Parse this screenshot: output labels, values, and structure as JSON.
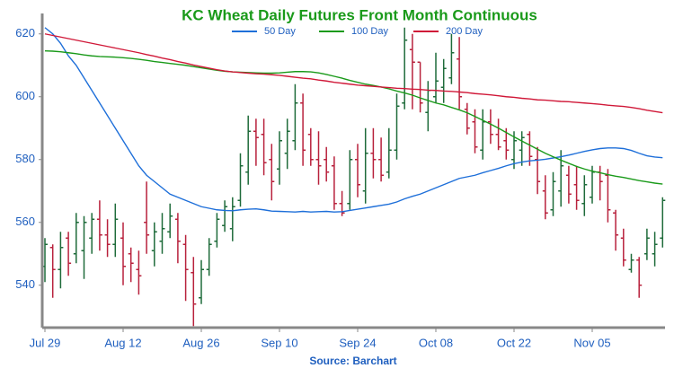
{
  "chart_data": {
    "type": "ohlc",
    "title": "KC Wheat Daily Futures Front Month Continuous",
    "title_color": "#1a9a1a",
    "source": "Source: Barchart",
    "categories": [
      "Jul 29",
      null,
      null,
      null,
      null,
      null,
      null,
      null,
      null,
      null,
      "Aug 12",
      null,
      null,
      null,
      null,
      null,
      null,
      null,
      null,
      null,
      "Aug 26",
      null,
      null,
      null,
      null,
      null,
      null,
      null,
      null,
      null,
      "Sep 10",
      null,
      null,
      null,
      null,
      null,
      null,
      null,
      null,
      null,
      "Sep 24",
      null,
      null,
      null,
      null,
      null,
      null,
      null,
      null,
      null,
      "Oct 08",
      null,
      null,
      null,
      null,
      null,
      null,
      null,
      null,
      null,
      "Oct 22",
      null,
      null,
      null,
      null,
      null,
      null,
      null,
      null,
      null,
      "Nov 05",
      null,
      null,
      null,
      null,
      null,
      null,
      null,
      null,
      null
    ],
    "open": [
      546,
      552,
      545,
      555,
      550,
      551,
      555,
      561,
      556,
      553,
      555,
      550,
      545,
      560,
      551,
      554,
      557,
      561,
      553,
      544,
      536,
      545,
      554,
      559,
      558,
      567,
      576,
      589,
      588,
      580,
      577,
      582,
      586,
      598,
      588,
      580,
      580,
      578,
      566,
      566,
      580,
      570,
      582,
      580,
      576,
      583,
      598,
      615,
      611,
      595,
      600,
      603,
      606,
      612,
      596,
      592,
      583,
      592,
      588,
      586,
      580,
      583,
      588,
      580,
      570,
      564,
      570,
      575,
      572,
      566,
      568,
      576,
      575,
      563,
      555,
      545,
      548,
      550,
      550,
      555
    ],
    "high": [
      555,
      553,
      557,
      557,
      563,
      562,
      563,
      567,
      561,
      566,
      560,
      552,
      551,
      573,
      560,
      563,
      566,
      563,
      556,
      549,
      548,
      555,
      563,
      567,
      568,
      582,
      594,
      593,
      593,
      585,
      589,
      593,
      604,
      601,
      590,
      589,
      584,
      581,
      570,
      583,
      585,
      590,
      590,
      587,
      590,
      601,
      622,
      620,
      611,
      605,
      614,
      612,
      620,
      619,
      598,
      596,
      596,
      596,
      593,
      590,
      589,
      589,
      589,
      584,
      575,
      576,
      583,
      578,
      578,
      575,
      578,
      578,
      577,
      564,
      558,
      550,
      549,
      558,
      557,
      568
    ],
    "low": [
      541,
      536,
      539,
      543,
      547,
      542,
      550,
      551,
      549,
      549,
      540,
      541,
      537,
      550,
      546,
      550,
      555,
      547,
      535,
      527,
      534,
      543,
      552,
      557,
      554,
      565,
      572,
      578,
      575,
      567,
      572,
      577,
      583,
      578,
      578,
      572,
      573,
      564,
      562,
      564,
      568,
      566,
      574,
      573,
      574,
      580,
      596,
      596,
      595,
      589,
      598,
      598,
      604,
      596,
      588,
      582,
      580,
      585,
      583,
      580,
      577,
      578,
      578,
      569,
      561,
      562,
      565,
      566,
      564,
      562,
      566,
      567,
      560,
      551,
      546,
      544,
      536,
      548,
      546,
      552
    ],
    "close": [
      553,
      545,
      552,
      547,
      560,
      560,
      561,
      556,
      553,
      561,
      546,
      547,
      543,
      556,
      557,
      558,
      562,
      554,
      545,
      534,
      545,
      553,
      561,
      565,
      565,
      578,
      589,
      587,
      579,
      573,
      586,
      589,
      598,
      583,
      580,
      578,
      576,
      566,
      563,
      580,
      572,
      582,
      580,
      575,
      583,
      597,
      618,
      611,
      598,
      602,
      605,
      609,
      614,
      600,
      590,
      584,
      592,
      588,
      584,
      583,
      586,
      587,
      581,
      573,
      563,
      573,
      578,
      569,
      567,
      572,
      576,
      573,
      564,
      556,
      548,
      548,
      540,
      555,
      553,
      567
    ],
    "up_color": "#1e6b3a",
    "down_color": "#b8213c",
    "series": [
      {
        "name": "50 Day",
        "color": "#1e6fd9",
        "values": [
          622,
          620,
          617,
          613,
          610,
          606,
          602,
          598,
          594,
          590,
          586,
          582,
          578,
          575,
          573,
          571,
          569,
          568,
          567,
          566,
          565,
          564.5,
          564,
          563.8,
          563.7,
          564,
          564.2,
          564.3,
          564,
          563.6,
          563.5,
          563.4,
          563.3,
          563.5,
          563.3,
          563.4,
          563.5,
          563.3,
          563.4,
          563.8,
          564.2,
          564.6,
          565,
          565.4,
          565.8,
          566.5,
          567.5,
          568.3,
          569,
          570,
          571,
          572,
          573,
          574,
          574.5,
          575,
          575.8,
          576.5,
          577.2,
          578,
          578.7,
          579.2,
          579.6,
          579.8,
          580.1,
          580.5,
          580.9,
          581.4,
          582,
          582.6,
          583.1,
          583.5,
          583.7,
          583.7,
          583.5,
          582.9,
          582,
          581.2,
          580.8,
          580.6
        ]
      },
      {
        "name": "100 Day",
        "color": "#1a9a1a",
        "values": [
          614.6,
          614.5,
          614.3,
          614,
          613.7,
          613.3,
          613,
          612.8,
          612.7,
          612.6,
          612.4,
          612.2,
          611.9,
          611.6,
          611.2,
          610.9,
          610.6,
          610.3,
          610,
          609.6,
          609.2,
          608.8,
          608.4,
          608.1,
          607.9,
          607.8,
          607.7,
          607.6,
          607.5,
          607.5,
          607.6,
          607.8,
          608,
          608,
          607.9,
          607.6,
          607.1,
          606.5,
          605.9,
          605.2,
          604.6,
          604,
          603.6,
          603.1,
          602.5,
          601.8,
          601.2,
          600.5,
          599.6,
          598.8,
          598,
          597.4,
          596.6,
          595.8,
          594.9,
          593.7,
          592.5,
          591.3,
          590,
          588.6,
          587.2,
          585.9,
          584.6,
          583.3,
          582,
          580.9,
          579.8,
          578.8,
          577.8,
          577,
          576.3,
          575.8,
          575.2,
          574.7,
          574.3,
          573.8,
          573.3,
          572.9,
          572.5,
          572.2
        ]
      },
      {
        "name": "200 Day",
        "color": "#d01838",
        "values": [
          620,
          619.5,
          619,
          618.5,
          618,
          617.5,
          617,
          616.5,
          616,
          615.5,
          615,
          614.5,
          614,
          613.4,
          612.9,
          612.3,
          611.8,
          611.2,
          610.7,
          610.1,
          609.6,
          609.1,
          608.6,
          608.2,
          607.9,
          607.7,
          607.5,
          607.3,
          607.2,
          607,
          606.8,
          606.5,
          606.2,
          605.9,
          605.7,
          605.3,
          605,
          604.6,
          604.3,
          604,
          603.7,
          603.5,
          603.3,
          603.1,
          602.9,
          602.7,
          602.6,
          602.4,
          602.3,
          602.1,
          602,
          601.8,
          601.7,
          601.5,
          601.3,
          601,
          600.8,
          600.6,
          600.3,
          600,
          599.8,
          599.5,
          599.3,
          599,
          598.9,
          598.7,
          598.5,
          598.4,
          598.2,
          598,
          597.8,
          597.6,
          597.3,
          597.1,
          596.9,
          596.6,
          596.2,
          595.7,
          595.3,
          594.9
        ]
      }
    ],
    "ylim": [
      526.5,
      626.5
    ],
    "yticks": [
      540,
      560,
      580,
      600,
      620
    ],
    "tick_color": "#1f5fbf"
  }
}
